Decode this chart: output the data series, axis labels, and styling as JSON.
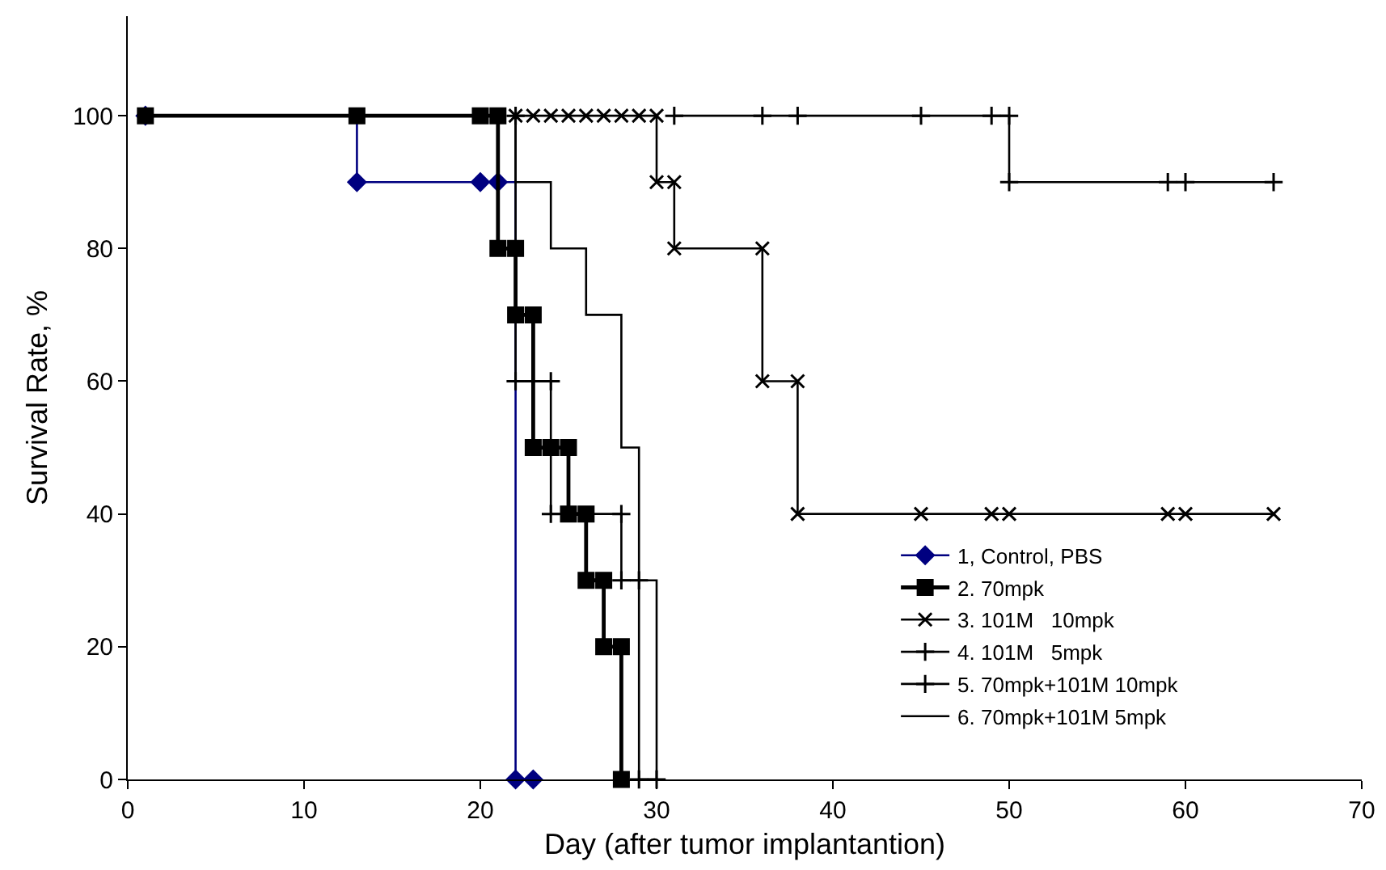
{
  "chart_data": {
    "type": "step",
    "xlabel": "Day (after tumor implantantion)",
    "ylabel": "Survival Rate, %",
    "xlim": [
      0,
      70
    ],
    "xticks": [
      0,
      10,
      20,
      30,
      40,
      50,
      60,
      70
    ],
    "ylim": [
      0,
      115
    ],
    "yticks": [
      0,
      20,
      40,
      60,
      80,
      100
    ],
    "grid": false,
    "legend": "bottom right",
    "series": [
      {
        "name": "1, Control, PBS",
        "color": "#000080",
        "marker": "diamond",
        "x": [
          1,
          13,
          20,
          21,
          22,
          23
        ],
        "values": [
          100,
          90,
          90,
          90,
          0,
          0
        ]
      },
      {
        "name": "2. 70mpk",
        "color": "#000000",
        "marker": "square",
        "x": [
          1,
          13,
          20,
          21,
          21,
          22,
          22,
          23,
          23,
          24,
          25,
          25,
          26,
          26,
          27,
          27,
          28,
          28
        ],
        "values": [
          100,
          100,
          100,
          100,
          80,
          80,
          70,
          70,
          50,
          50,
          50,
          40,
          40,
          30,
          30,
          20,
          20,
          0
        ]
      },
      {
        "name": "3. 101M   10mpk",
        "color": "#000000",
        "marker": "x",
        "x": [
          22,
          23,
          24,
          25,
          26,
          27,
          28,
          29,
          30,
          30,
          31,
          31,
          36,
          36,
          38,
          38,
          45,
          49,
          50,
          59,
          60,
          65
        ],
        "values": [
          100,
          100,
          100,
          100,
          100,
          100,
          100,
          100,
          100,
          90,
          90,
          80,
          80,
          60,
          60,
          40,
          40,
          40,
          40,
          40,
          40,
          40
        ]
      },
      {
        "name": "4. 101M   5mpk",
        "color": "#000000",
        "marker": "cross",
        "x": [
          22,
          22,
          23,
          24,
          24,
          28,
          28,
          29,
          29,
          30
        ],
        "values": [
          100,
          60,
          60,
          60,
          40,
          40,
          30,
          30,
          0,
          0
        ]
      },
      {
        "name": "5. 70mpk+101M 10mpk",
        "color": "#000000",
        "marker": "cross",
        "x": [
          31,
          36,
          38,
          45,
          49,
          50,
          50,
          59,
          60,
          65
        ],
        "values": [
          100,
          100,
          100,
          100,
          100,
          100,
          90,
          90,
          90,
          90
        ]
      },
      {
        "name": "6. 70mpk+101M 5mpk",
        "color": "#000000",
        "marker": "none",
        "x": [
          22,
          22,
          23,
          24,
          24,
          25,
          26,
          26,
          27,
          28,
          28,
          29,
          29,
          30,
          30
        ],
        "values": [
          100,
          90,
          90,
          90,
          80,
          80,
          80,
          70,
          70,
          70,
          50,
          50,
          30,
          30,
          0
        ]
      }
    ]
  }
}
